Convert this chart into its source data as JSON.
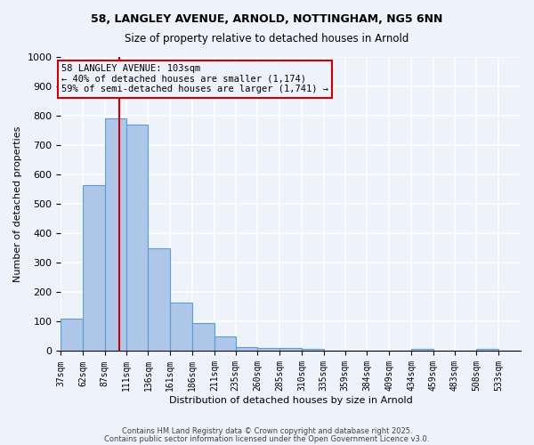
{
  "title1": "58, LANGLEY AVENUE, ARNOLD, NOTTINGHAM, NG5 6NN",
  "title2": "Size of property relative to detached houses in Arnold",
  "xlabel": "Distribution of detached houses by size in Arnold",
  "ylabel": "Number of detached properties",
  "bin_edges": [
    37,
    62,
    87,
    111,
    136,
    161,
    186,
    211,
    235,
    260,
    285,
    310,
    335,
    359,
    384,
    409,
    434,
    459,
    483,
    508,
    533,
    558
  ],
  "bar_heights": [
    110,
    565,
    790,
    770,
    350,
    165,
    95,
    50,
    15,
    10,
    10,
    7,
    0,
    0,
    0,
    0,
    7,
    0,
    0,
    7,
    0
  ],
  "bar_color": "#aec6e8",
  "bar_edge_color": "#5a9fd4",
  "background_color": "#eef2fb",
  "grid_color": "#ffffff",
  "vline_x": 103,
  "vline_color": "#cc0000",
  "annotation_text": "58 LANGLEY AVENUE: 103sqm\n← 40% of detached houses are smaller (1,174)\n59% of semi-detached houses are larger (1,741) →",
  "annotation_box_color": "#cc0000",
  "ylim": [
    0,
    1000
  ],
  "tick_labels": [
    "37sqm",
    "62sqm",
    "87sqm",
    "111sqm",
    "136sqm",
    "161sqm",
    "186sqm",
    "211sqm",
    "235sqm",
    "260sqm",
    "285sqm",
    "310sqm",
    "335sqm",
    "359sqm",
    "384sqm",
    "409sqm",
    "434sqm",
    "459sqm",
    "483sqm",
    "508sqm",
    "533sqm"
  ],
  "footer1": "Contains HM Land Registry data © Crown copyright and database right 2025.",
  "footer2": "Contains public sector information licensed under the Open Government Licence v3.0."
}
